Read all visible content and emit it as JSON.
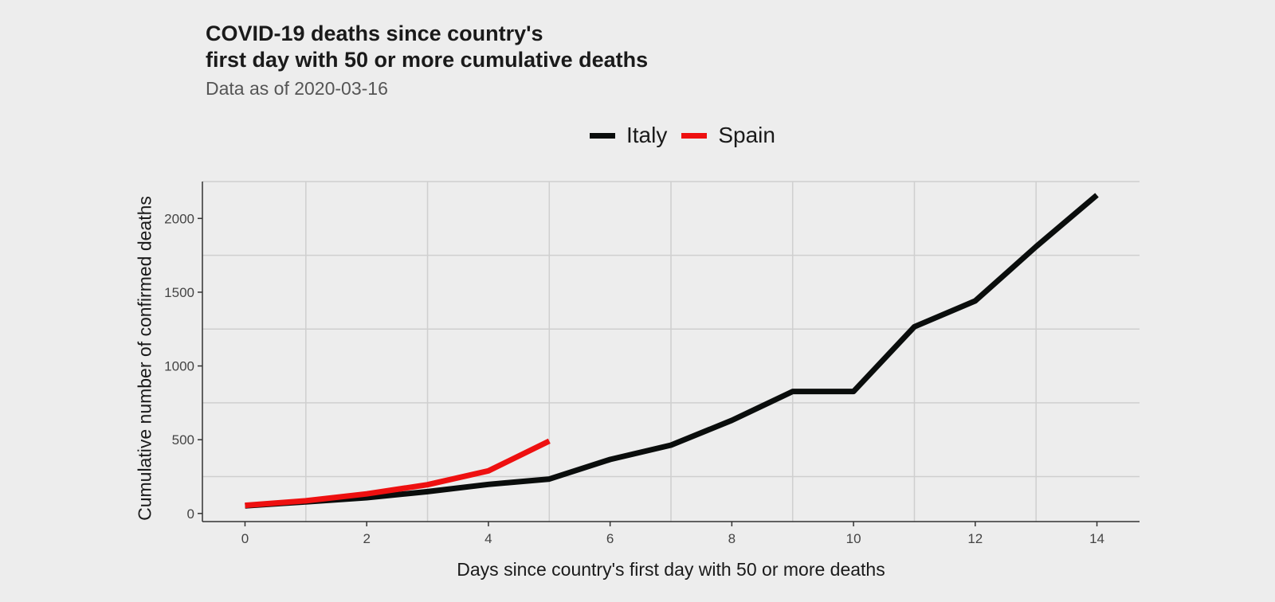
{
  "chart_data": {
    "type": "line",
    "title": "COVID-19 deaths since country's first day with 50 or more cumulative deaths",
    "title_lines": [
      "COVID-19 deaths since country's",
      "first day with 50 or more cumulative deaths"
    ],
    "subtitle": "Data as of 2020-03-16",
    "xlabel": "Days since country's first day with 50 or more deaths",
    "ylabel": "Cumulative number of confirmed deaths",
    "x_ticks": [
      0,
      2,
      4,
      6,
      8,
      10,
      12,
      14
    ],
    "y_ticks": [
      0,
      500,
      1000,
      1500,
      2000
    ],
    "xlim": [
      -0.7,
      14.7
    ],
    "ylim": [
      -55,
      2250
    ],
    "grid": "minor",
    "legend_position": "top",
    "series": [
      {
        "name": "Italy",
        "color": "#0a0d0c",
        "x": [
          0,
          1,
          2,
          3,
          4,
          5,
          6,
          7,
          8,
          9,
          10,
          11,
          12,
          13,
          14
        ],
        "values": [
          52,
          79,
          107,
          148,
          197,
          233,
          366,
          463,
          631,
          827,
          827,
          1266,
          1441,
          1809,
          2158
        ]
      },
      {
        "name": "Spain",
        "color": "#ee1010",
        "x": [
          0,
          1,
          2,
          3,
          4,
          5
        ],
        "values": [
          55,
          86,
          133,
          195,
          289,
          491
        ]
      }
    ]
  }
}
